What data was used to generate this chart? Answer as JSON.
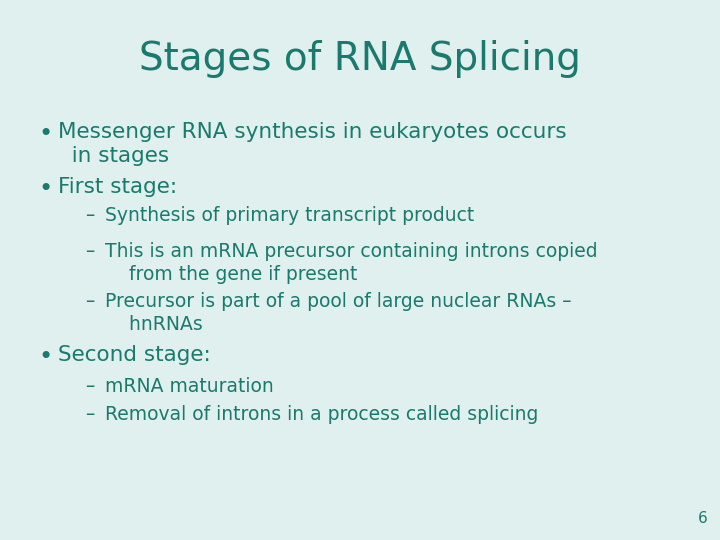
{
  "title": "Stages of RNA Splicing",
  "title_color": "#1a7a6e",
  "background_color": "#dff0ee",
  "text_color": "#1a7a6e",
  "title_fontsize": 28,
  "bullet_fontsize": 15.5,
  "sub_fontsize": 13.5,
  "page_number": "6",
  "page_number_fontsize": 11,
  "bullets": [
    {
      "type": "bullet",
      "text": "Messenger RNA synthesis in eukaryotes occurs\n  in stages"
    },
    {
      "type": "bullet",
      "text": "First stage:"
    },
    {
      "type": "sub",
      "text": "Synthesis of primary transcript product"
    },
    {
      "type": "sub",
      "text": "This is an mRNA precursor containing introns copied\n    from the gene if present"
    },
    {
      "type": "sub",
      "text": "Precursor is part of a pool of large nuclear RNAs –\n    hnRNAs"
    },
    {
      "type": "bullet",
      "text": "Second stage:"
    },
    {
      "type": "sub",
      "text": "mRNA maturation"
    },
    {
      "type": "sub",
      "text": "Removal of introns in a process called splicing"
    }
  ]
}
